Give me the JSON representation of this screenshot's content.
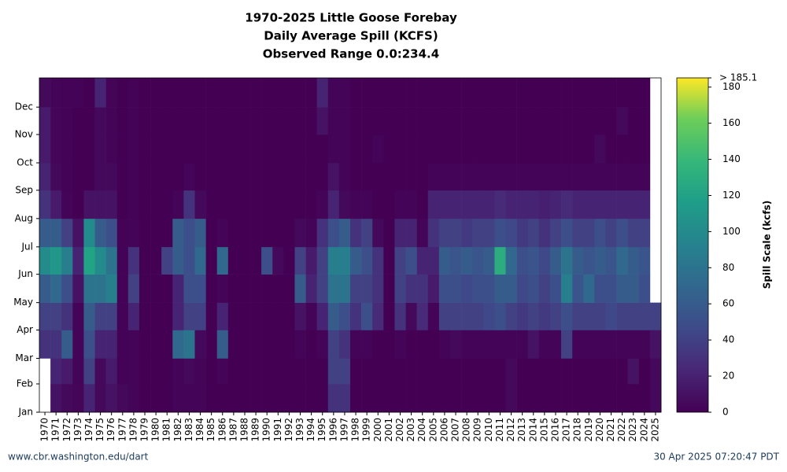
{
  "chart_data": {
    "type": "heatmap",
    "title": [
      "1970-2025 Little Goose Forebay",
      "Daily Average Spill (KCFS)",
      "Observed Range 0.0:234.4"
    ],
    "categories": [
      "1970",
      "1971",
      "1972",
      "1973",
      "1974",
      "1975",
      "1976",
      "1977",
      "1978",
      "1979",
      "1980",
      "1981",
      "1982",
      "1983",
      "1984",
      "1985",
      "1986",
      "1987",
      "1988",
      "1989",
      "1990",
      "1991",
      "1992",
      "1993",
      "1994",
      "1995",
      "1996",
      "1997",
      "1998",
      "1999",
      "2000",
      "2001",
      "2002",
      "2003",
      "2004",
      "2005",
      "2006",
      "2007",
      "2008",
      "2009",
      "2010",
      "2011",
      "2012",
      "2013",
      "2014",
      "2015",
      "2016",
      "2017",
      "2018",
      "2019",
      "2020",
      "2021",
      "2022",
      "2023",
      "2024",
      "2025"
    ],
    "ylim": [
      0,
      366
    ],
    "yticks": [
      {
        "value": 0,
        "label": "Jan"
      },
      {
        "value": 31,
        "label": "Feb"
      },
      {
        "value": 59,
        "label": "Mar"
      },
      {
        "value": 90,
        "label": "Apr"
      },
      {
        "value": 120,
        "label": "May"
      },
      {
        "value": 151,
        "label": "Jun"
      },
      {
        "value": 181,
        "label": "Jul"
      },
      {
        "value": 212,
        "label": "Aug"
      },
      {
        "value": 243,
        "label": "Sep"
      },
      {
        "value": 273,
        "label": "Oct"
      },
      {
        "value": 304,
        "label": "Nov"
      },
      {
        "value": 334,
        "label": "Dec"
      }
    ],
    "values": [
      [
        null,
        null,
        30,
        40,
        60,
        100,
        60,
        30,
        20,
        15,
        15,
        5
      ],
      [
        10,
        20,
        30,
        40,
        70,
        110,
        60,
        15,
        5,
        3,
        3,
        2
      ],
      [
        5,
        15,
        60,
        30,
        50,
        90,
        40,
        2,
        1,
        1,
        1,
        1
      ],
      [
        3,
        2,
        2,
        2,
        10,
        20,
        10,
        0,
        0,
        0,
        0,
        1
      ],
      [
        20,
        40,
        50,
        60,
        80,
        120,
        100,
        10,
        0,
        0,
        0,
        0
      ],
      [
        5,
        5,
        20,
        40,
        80,
        100,
        60,
        10,
        5,
        5,
        5,
        20
      ],
      [
        10,
        15,
        20,
        40,
        90,
        80,
        50,
        10,
        5,
        2,
        2,
        2
      ],
      [
        5,
        1,
        1,
        1,
        1,
        1,
        1,
        0,
        0,
        0,
        0,
        0
      ],
      [
        2,
        2,
        2,
        20,
        40,
        30,
        2,
        1,
        1,
        1,
        1,
        1
      ],
      [
        0,
        0,
        0,
        0,
        0,
        0,
        0,
        0,
        0,
        0,
        0,
        0
      ],
      [
        0,
        0,
        0,
        0,
        0,
        0,
        0,
        0,
        0,
        0,
        0,
        0
      ],
      [
        0,
        0,
        0,
        0,
        0,
        40,
        0,
        0,
        0,
        0,
        0,
        0
      ],
      [
        2,
        2,
        70,
        20,
        20,
        60,
        60,
        2,
        0,
        0,
        0,
        0
      ],
      [
        2,
        5,
        80,
        40,
        50,
        50,
        50,
        30,
        2,
        0,
        0,
        0
      ],
      [
        2,
        2,
        5,
        40,
        50,
        70,
        60,
        5,
        0,
        0,
        0,
        0
      ],
      [
        0,
        0,
        0,
        0,
        0,
        0,
        0,
        0,
        0,
        0,
        0,
        0
      ],
      [
        0,
        2,
        60,
        20,
        2,
        70,
        2,
        0,
        0,
        0,
        0,
        0
      ],
      [
        0,
        0,
        0,
        0,
        0,
        0,
        0,
        0,
        0,
        0,
        0,
        0
      ],
      [
        0,
        0,
        0,
        0,
        0,
        0,
        0,
        0,
        0,
        0,
        0,
        0
      ],
      [
        0,
        0,
        0,
        0,
        0,
        0,
        0,
        0,
        0,
        0,
        0,
        0
      ],
      [
        0,
        0,
        0,
        0,
        0,
        50,
        0,
        0,
        0,
        0,
        0,
        0
      ],
      [
        0,
        0,
        0,
        0,
        0,
        5,
        0,
        0,
        0,
        0,
        0,
        0
      ],
      [
        0,
        0,
        0,
        0,
        0,
        0,
        0,
        0,
        0,
        0,
        0,
        0
      ],
      [
        0,
        0,
        2,
        10,
        60,
        40,
        5,
        0,
        0,
        0,
        0,
        0
      ],
      [
        0,
        0,
        0,
        2,
        20,
        15,
        2,
        0,
        0,
        0,
        0,
        0
      ],
      [
        0,
        0,
        2,
        20,
        40,
        40,
        30,
        2,
        0,
        0,
        10,
        20
      ],
      [
        30,
        40,
        40,
        60,
        80,
        90,
        50,
        20,
        10,
        2,
        2,
        2
      ],
      [
        30,
        40,
        30,
        50,
        80,
        90,
        60,
        5,
        2,
        2,
        2,
        2
      ],
      [
        0,
        0,
        2,
        30,
        40,
        60,
        30,
        2,
        0,
        0,
        0,
        0
      ],
      [
        0,
        0,
        2,
        50,
        40,
        50,
        40,
        2,
        0,
        0,
        0,
        0
      ],
      [
        0,
        0,
        0,
        25,
        30,
        30,
        5,
        0,
        0,
        2,
        0,
        0
      ],
      [
        0,
        0,
        0,
        0,
        0,
        0,
        0,
        0,
        0,
        0,
        0,
        0
      ],
      [
        0,
        0,
        2,
        30,
        40,
        40,
        20,
        2,
        0,
        0,
        0,
        0
      ],
      [
        0,
        0,
        0,
        5,
        30,
        50,
        20,
        2,
        0,
        0,
        0,
        0
      ],
      [
        0,
        0,
        0,
        25,
        30,
        20,
        2,
        0,
        0,
        0,
        0,
        0
      ],
      [
        0,
        0,
        0,
        2,
        15,
        20,
        30,
        20,
        2,
        0,
        0,
        0
      ],
      [
        0,
        0,
        2,
        40,
        50,
        60,
        40,
        20,
        2,
        0,
        0,
        0
      ],
      [
        0,
        0,
        5,
        40,
        50,
        55,
        40,
        20,
        2,
        0,
        0,
        0
      ],
      [
        0,
        0,
        2,
        40,
        45,
        60,
        35,
        20,
        2,
        0,
        0,
        0
      ],
      [
        0,
        0,
        2,
        40,
        50,
        55,
        40,
        20,
        2,
        0,
        0,
        0
      ],
      [
        0,
        0,
        2,
        45,
        50,
        60,
        40,
        20,
        2,
        0,
        0,
        0
      ],
      [
        0,
        0,
        2,
        50,
        60,
        130,
        50,
        25,
        2,
        0,
        0,
        0
      ],
      [
        5,
        5,
        2,
        40,
        60,
        70,
        45,
        20,
        2,
        0,
        0,
        0
      ],
      [
        0,
        0,
        2,
        35,
        45,
        50,
        35,
        20,
        2,
        0,
        0,
        0
      ],
      [
        0,
        0,
        10,
        40,
        50,
        55,
        40,
        20,
        2,
        0,
        0,
        0
      ],
      [
        0,
        0,
        2,
        35,
        40,
        45,
        30,
        18,
        2,
        0,
        0,
        0
      ],
      [
        0,
        0,
        2,
        40,
        50,
        60,
        40,
        20,
        2,
        0,
        0,
        0
      ],
      [
        0,
        0,
        40,
        50,
        90,
        80,
        50,
        25,
        2,
        0,
        0,
        0
      ],
      [
        0,
        0,
        2,
        40,
        55,
        60,
        40,
        20,
        2,
        0,
        0,
        0
      ],
      [
        0,
        0,
        2,
        40,
        70,
        55,
        40,
        20,
        2,
        0,
        0,
        0
      ],
      [
        0,
        0,
        2,
        40,
        50,
        60,
        50,
        20,
        2,
        5,
        0,
        0
      ],
      [
        0,
        0,
        2,
        45,
        50,
        55,
        40,
        20,
        2,
        0,
        0,
        0
      ],
      [
        0,
        0,
        2,
        40,
        60,
        70,
        50,
        20,
        2,
        0,
        5,
        0
      ],
      [
        0,
        10,
        2,
        40,
        60,
        60,
        40,
        20,
        2,
        0,
        0,
        0
      ],
      [
        0,
        0,
        2,
        40,
        50,
        55,
        40,
        20,
        2,
        0,
        0,
        0
      ],
      [
        5,
        5,
        10,
        40,
        null,
        null,
        null,
        null,
        null,
        null,
        null,
        null
      ]
    ],
    "clim": [
      0,
      185.1
    ],
    "colorbar_label": "Spill Scale (kcfs)",
    "cticks": [
      0,
      20,
      40,
      60,
      80,
      100,
      120,
      140,
      160,
      180,
      {
        "value": 185.1,
        "label": "> 185.1"
      }
    ],
    "colormap": "viridis",
    "source": "www.cbr.washington.edu/dart",
    "timestamp": "30 Apr 2025 07:20:47 PDT"
  }
}
